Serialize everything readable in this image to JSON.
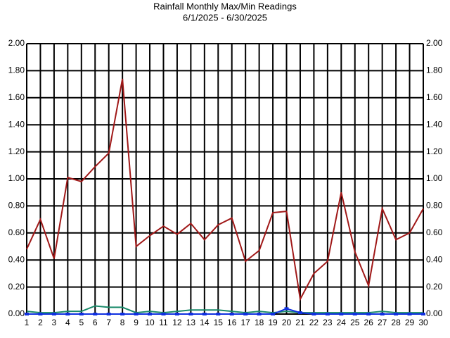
{
  "chart_data": {
    "type": "line",
    "title": "Rainfall Monthly Max/Min Readings",
    "subtitle": "6/1/2025 - 6/30/2025",
    "x": [
      1,
      2,
      3,
      4,
      5,
      6,
      7,
      8,
      9,
      10,
      11,
      12,
      13,
      14,
      15,
      16,
      17,
      18,
      19,
      20,
      21,
      22,
      23,
      24,
      25,
      26,
      27,
      28,
      29,
      30
    ],
    "xlim": [
      1,
      30
    ],
    "xticks": [
      1,
      2,
      3,
      4,
      5,
      6,
      7,
      8,
      9,
      10,
      11,
      12,
      13,
      14,
      15,
      16,
      17,
      18,
      19,
      20,
      21,
      22,
      23,
      24,
      25,
      26,
      27,
      28,
      29,
      30
    ],
    "ylim": [
      0,
      2
    ],
    "yticks": [
      {
        "value": 0,
        "label": "0.00"
      },
      {
        "value": 0.2,
        "label": "0.20"
      },
      {
        "value": 0.4,
        "label": "0.40"
      },
      {
        "value": 0.6,
        "label": "0.60"
      },
      {
        "value": 0.8,
        "label": "0.80"
      },
      {
        "value": 1,
        "label": "1.00"
      },
      {
        "value": 1.2,
        "label": "1.20"
      },
      {
        "value": 1.4,
        "label": "1.40"
      },
      {
        "value": 1.6,
        "label": "1.60"
      },
      {
        "value": 1.8,
        "label": "1.80"
      },
      {
        "value": 2,
        "label": "2.00"
      }
    ],
    "grid": true,
    "series": [
      {
        "color": "#a01818",
        "values": [
          0.48,
          0.7,
          0.41,
          1.01,
          0.98,
          1.09,
          1.19,
          1.74,
          0.5,
          0.58,
          0.65,
          0.59,
          0.67,
          0.55,
          0.66,
          0.71,
          0.39,
          0.47,
          0.75,
          0.76,
          0.11,
          0.3,
          0.39,
          0.9,
          0.46,
          0.21,
          0.78,
          0.55,
          0.6,
          0.78
        ]
      },
      {
        "color": "#1a8a6a",
        "values": [
          0.02,
          0.01,
          0.01,
          0.02,
          0.02,
          0.06,
          0.05,
          0.05,
          0.01,
          0.02,
          0.01,
          0.02,
          0.03,
          0.03,
          0.03,
          0.02,
          0.01,
          0.02,
          0.01,
          0.02,
          0.01,
          0.01,
          0.01,
          0.01,
          0.01,
          0.01,
          0.02,
          0.01,
          0.01,
          0.01
        ]
      },
      {
        "color": "#1030e0",
        "values": [
          0,
          0,
          0,
          0,
          0,
          0,
          0,
          0,
          0,
          0,
          0,
          0,
          0,
          0,
          0,
          0,
          0,
          0,
          0,
          0.04,
          0.01,
          0,
          0,
          0,
          0,
          0,
          0,
          0,
          0,
          0
        ]
      }
    ]
  }
}
